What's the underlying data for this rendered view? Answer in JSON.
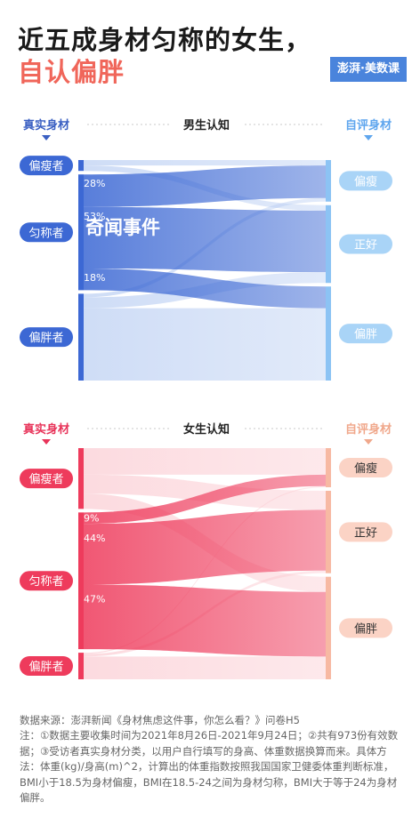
{
  "header": {
    "title_line1": "近五成身材匀称的女生，",
    "title_line2": "自认偏胖",
    "brand": "澎湃·美数课"
  },
  "watermark": "奇闻事件",
  "colors": {
    "male_dark": "#3c68d4",
    "male_light": "#b7ccf2",
    "female_dark": "#ee3b5c",
    "female_light": "#fbc9d0",
    "male_label_text": "#3a5fc2",
    "female_label_text": "#e8345a",
    "male_right_pill": "#a9d4f7",
    "female_right_pill": "#fbd3c5"
  },
  "chart_data": [
    {
      "type": "sankey",
      "title": "男生认知",
      "left_axis_title": "真实身材",
      "right_axis_title": "自评身材",
      "left_nodes": [
        "偏瘦者",
        "匀称者",
        "偏胖者"
      ],
      "right_nodes": [
        "偏瘦",
        "正好",
        "偏胖"
      ],
      "left_totals": [
        3,
        32,
        24
      ],
      "flows": [
        [
          0,
          0,
          1.5
        ],
        [
          0,
          1,
          1.5
        ],
        [
          1,
          0,
          9
        ],
        [
          1,
          1,
          17
        ],
        [
          1,
          2,
          6
        ],
        [
          2,
          0,
          1
        ],
        [
          2,
          1,
          3
        ],
        [
          2,
          2,
          20
        ]
      ],
      "annotations": [
        "28%",
        "53%",
        "18%"
      ]
    },
    {
      "type": "sankey",
      "title": "女生认知",
      "left_axis_title": "真实身材",
      "right_axis_title": "自评身材",
      "left_nodes": [
        "偏瘦者",
        "匀称者",
        "偏胖者"
      ],
      "right_nodes": [
        "偏瘦",
        "正好",
        "偏胖"
      ],
      "left_totals": [
        16,
        36,
        7
      ],
      "flows": [
        [
          0,
          0,
          7
        ],
        [
          0,
          1,
          5
        ],
        [
          0,
          2,
          4
        ],
        [
          1,
          0,
          3
        ],
        [
          1,
          1,
          16
        ],
        [
          1,
          2,
          17
        ],
        [
          2,
          0,
          0.3
        ],
        [
          2,
          1,
          0.7
        ],
        [
          2,
          2,
          6
        ]
      ],
      "annotations": [
        "9%",
        "44%",
        "47%"
      ]
    }
  ],
  "footer": {
    "source": "数据来源：澎湃新闻《身材焦虑这件事，你怎么看？》问卷H5",
    "note": "注：①数据主要收集时间为2021年8月26日-2021年9月24日；②共有973份有效数据；③受访者真实身材分类，以用户自行填写的身高、体重数据换算而来。具体方法：体重(kg)/身高(m)^2，计算出的体重指数按照我国国家卫健委体重判断标准，BMI小于18.5为身材偏瘦，BMI在18.5-24之间为身材匀称，BMI大于等于24为身材偏胖。"
  }
}
